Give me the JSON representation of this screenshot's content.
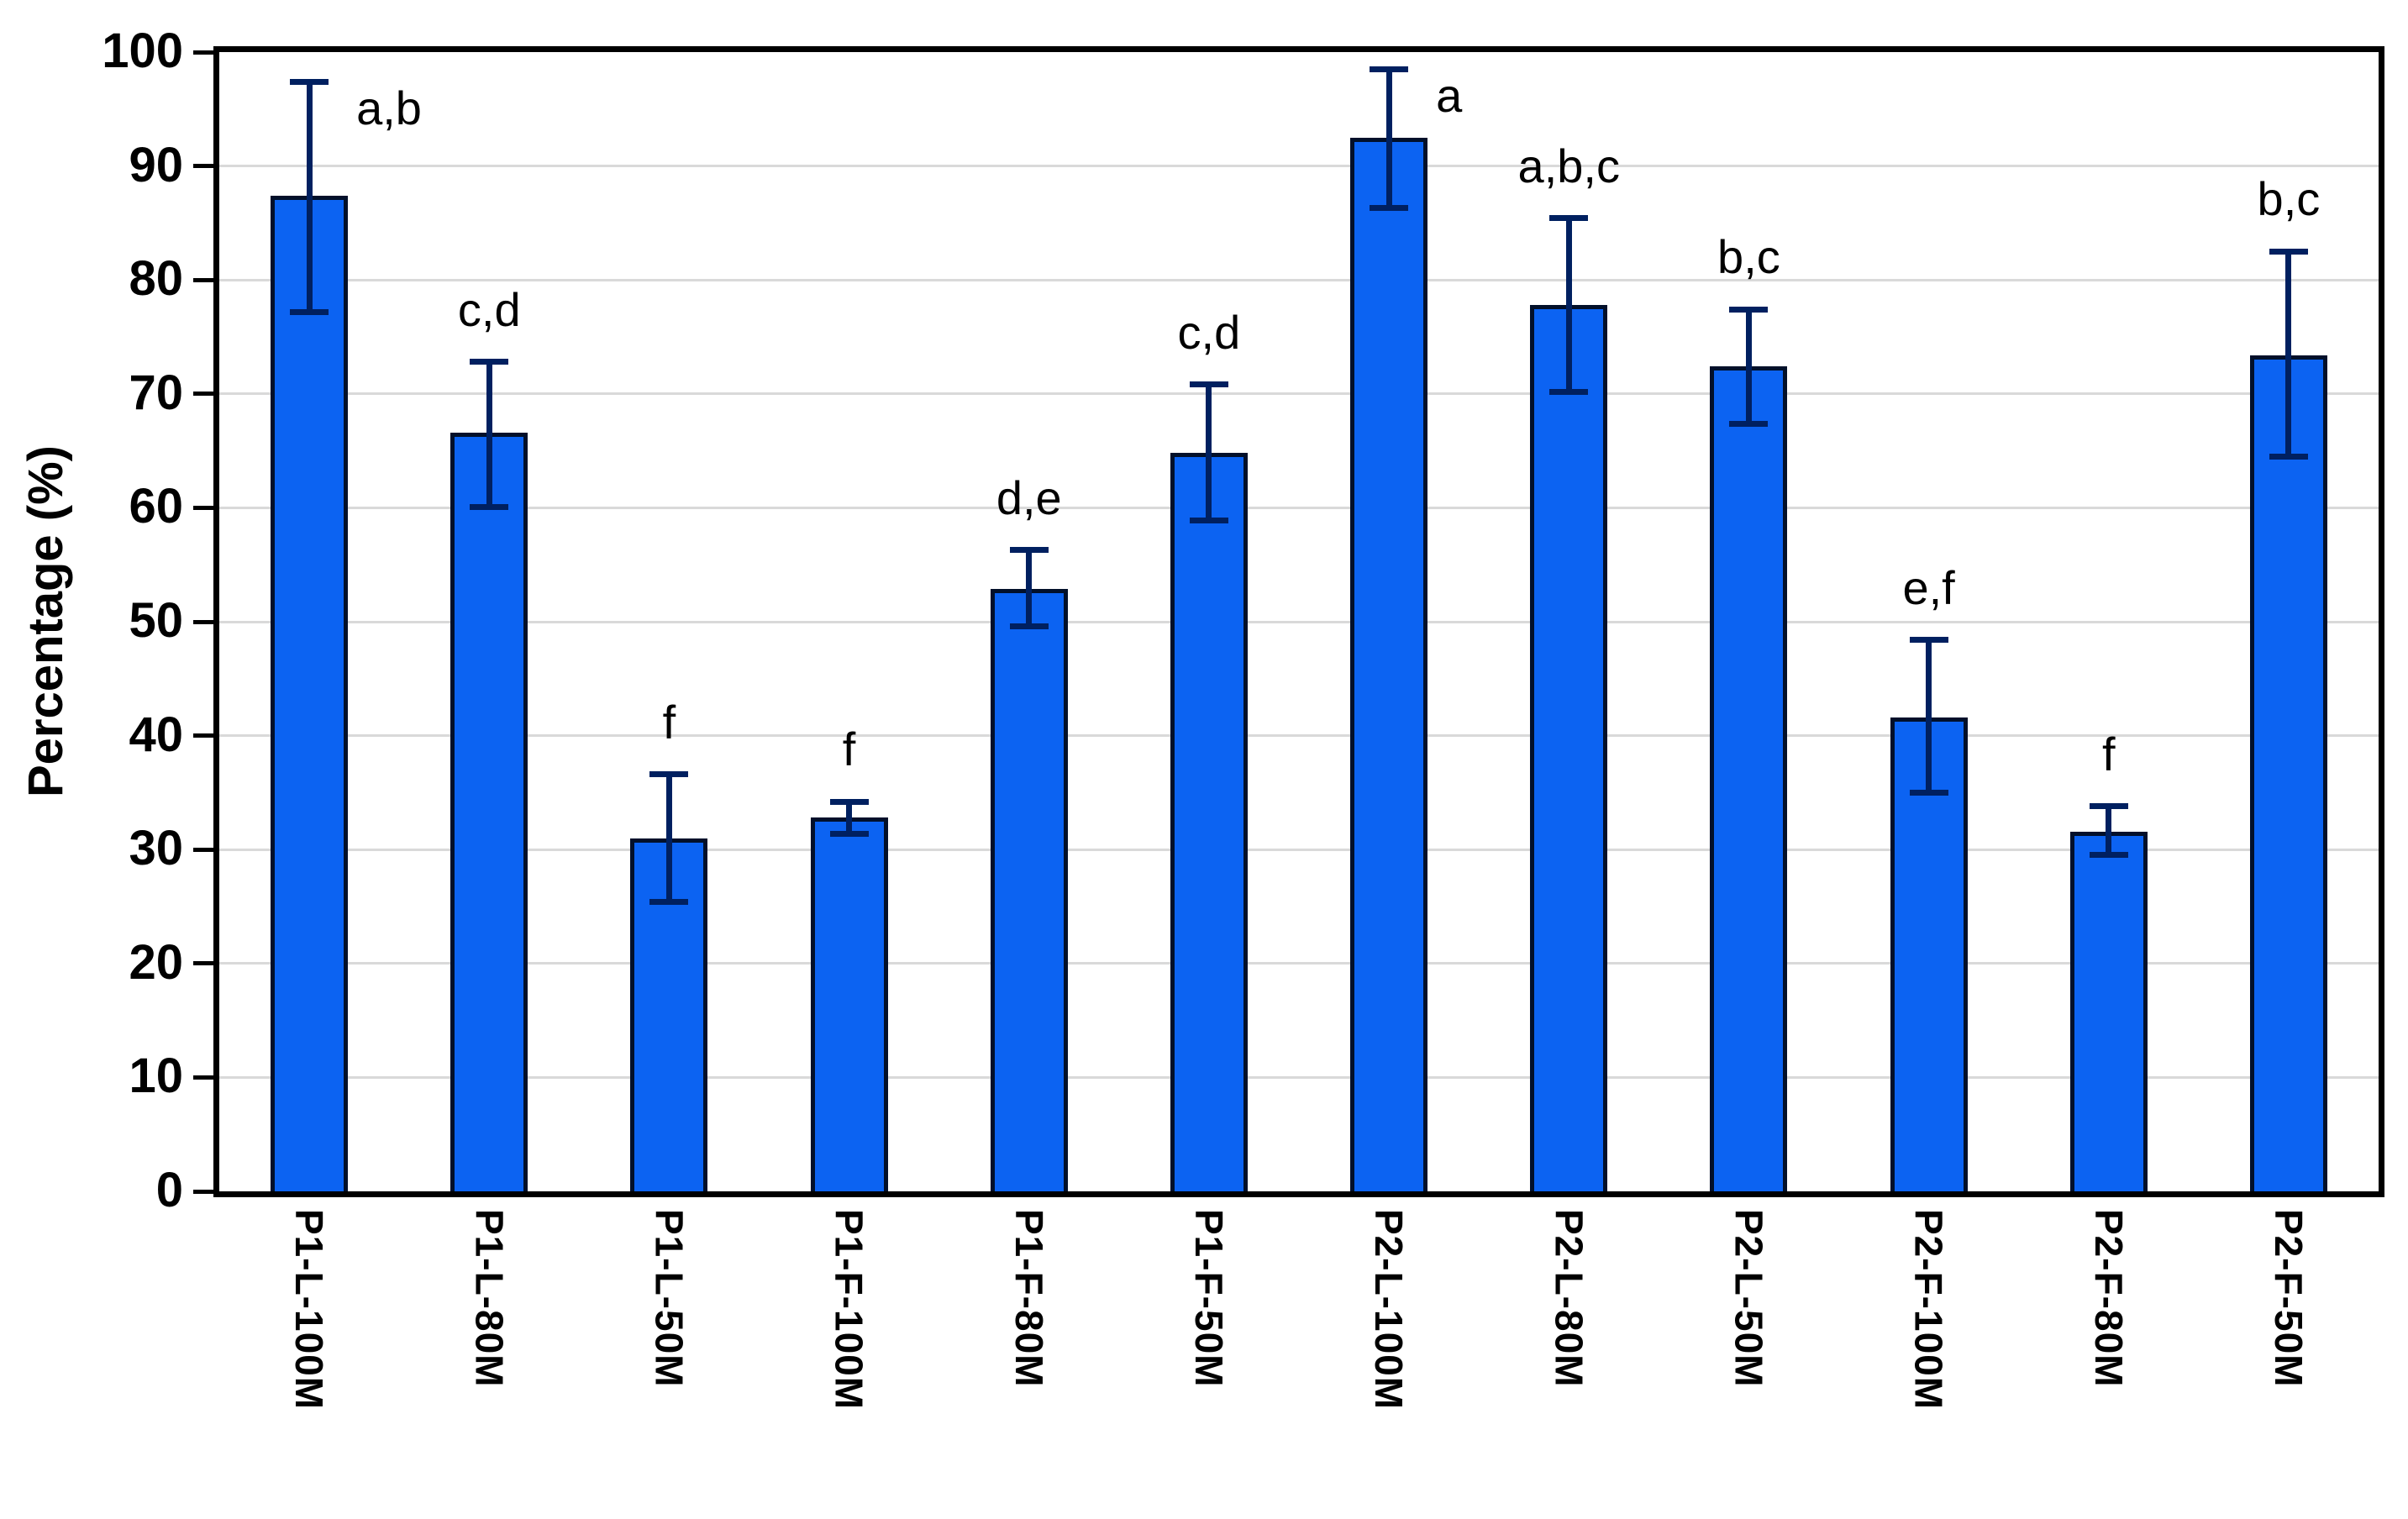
{
  "chart_data": {
    "type": "bar",
    "title": "",
    "xlabel": "",
    "ylabel": "Percentage (%)",
    "ylim": [
      0,
      100
    ],
    "yticks": [
      0,
      10,
      20,
      30,
      40,
      50,
      60,
      70,
      80,
      90,
      100
    ],
    "grid": true,
    "legend": false,
    "categories": [
      "P1-L-100M",
      "P1-L-80M",
      "P1-L-50M",
      "P1-F-100M",
      "P1-F-80M",
      "P1-F-50M",
      "P2-L-100M",
      "P2-L-80M",
      "P2-L-50M",
      "P2-F-100M",
      "P2-F-80M",
      "P2-F-50M"
    ],
    "series": [
      {
        "name": "Percentage",
        "values": [
          87.4,
          66.6,
          31.0,
          32.8,
          52.9,
          64.8,
          92.5,
          77.8,
          72.4,
          41.6,
          31.6,
          73.4
        ]
      }
    ],
    "error_low": [
      77.2,
      60.1,
      25.4,
      31.4,
      49.6,
      58.9,
      86.3,
      70.2,
      67.4,
      35.0,
      29.5,
      64.5
    ],
    "error_high": [
      97.4,
      72.8,
      36.6,
      34.2,
      56.3,
      70.8,
      98.5,
      85.4,
      77.4,
      48.4,
      33.8,
      82.5
    ],
    "sig_labels": [
      "a,b",
      "c,d",
      "f",
      "f",
      "d,e",
      "c,d",
      "a",
      "a,b,c",
      "b,c",
      "e,f",
      "f",
      "b,c"
    ],
    "sig_position": [
      "right",
      "above",
      "above",
      "above",
      "above",
      "above",
      "right",
      "above",
      "above",
      "above",
      "above",
      "above"
    ],
    "colors": {
      "bar_fill": "#0C63F2",
      "bar_border": "#02102A",
      "error_bar": "#002060",
      "gridline": "#D9D9D9",
      "axis": "#000000",
      "text": "#000000"
    }
  }
}
